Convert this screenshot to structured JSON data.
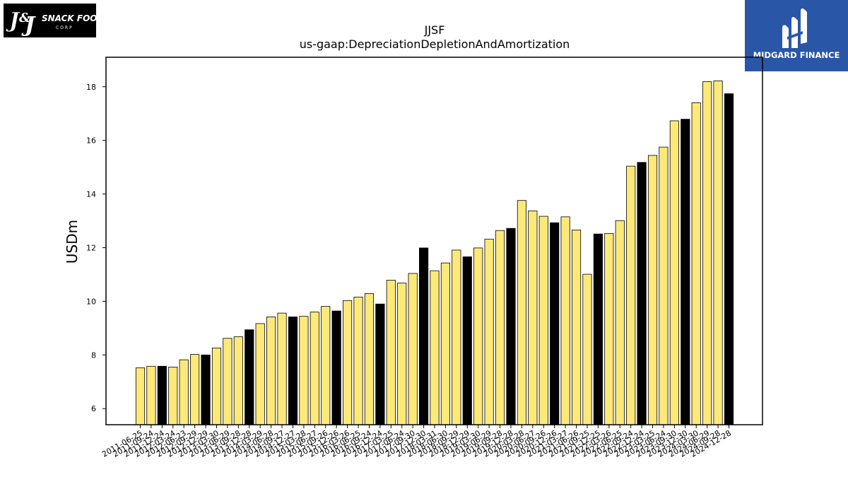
{
  "logos": {
    "left_text": "J&J SNACK FOODS CORP",
    "right_text": "MIDGARD FINANCE"
  },
  "chart_data": {
    "type": "bar",
    "title": "JJSF",
    "subtitle": "us-gaap:DepreciationDepletionAndAmortization",
    "xlabel": "",
    "ylabel": "USDm",
    "ylim": [
      5.4,
      19.1
    ],
    "yticks": [
      6,
      8,
      10,
      12,
      14,
      16,
      18
    ],
    "grid": false,
    "colors": {
      "quarter": "#fde978",
      "fiscal_year_end": "#000000",
      "edge": "#000000"
    },
    "categories": [
      "2011-06-25",
      "2011-09-24",
      "2011-12-24",
      "2012-03-24",
      "2012-06-23",
      "2012-09-29",
      "2012-12-29",
      "2013-03-30",
      "2013-06-29",
      "2013-09-28",
      "2013-12-28",
      "2014-03-29",
      "2014-06-28",
      "2014-09-27",
      "2014-12-27",
      "2015-03-28",
      "2015-06-27",
      "2015-09-26",
      "2015-12-26",
      "2016-03-26",
      "2016-06-25",
      "2016-09-24",
      "2016-12-24",
      "2017-03-25",
      "2017-06-24",
      "2017-09-30",
      "2017-12-30",
      "2018-03-31",
      "2018-06-30",
      "2018-09-29",
      "2018-12-29",
      "2019-03-30",
      "2019-06-29",
      "2019-09-28",
      "2019-12-28",
      "2020-03-28",
      "2020-06-27",
      "2020-09-26",
      "2020-12-26",
      "2021-03-27",
      "2021-06-26",
      "2021-09-25",
      "2021-12-25",
      "2022-03-26",
      "2022-06-25",
      "2022-09-24",
      "2022-12-24",
      "2023-03-25",
      "2023-06-24",
      "2023-09-30",
      "2023-12-30",
      "2024-03-30",
      "2024-06-29",
      "2024-09-28",
      "2024-12-28"
    ],
    "values": [
      7.52,
      7.58,
      7.58,
      7.55,
      7.82,
      8.02,
      8.0,
      8.26,
      8.62,
      8.68,
      8.94,
      9.17,
      9.42,
      9.56,
      9.42,
      9.44,
      9.6,
      9.81,
      9.64,
      10.03,
      10.16,
      10.29,
      9.9,
      10.79,
      10.68,
      11.04,
      11.99,
      11.14,
      11.43,
      11.91,
      11.66,
      11.99,
      12.32,
      12.64,
      12.72,
      13.76,
      13.37,
      13.17,
      12.93,
      13.15,
      12.66,
      11.01,
      12.51,
      12.53,
      13.01,
      15.04,
      15.18,
      15.44,
      15.75,
      16.73,
      16.79,
      17.4,
      18.19,
      18.22,
      17.74
    ],
    "fiscal_year_end": [
      false,
      false,
      true,
      false,
      false,
      false,
      true,
      false,
      false,
      false,
      true,
      false,
      false,
      false,
      true,
      false,
      false,
      false,
      true,
      false,
      false,
      false,
      true,
      false,
      false,
      false,
      true,
      false,
      false,
      false,
      true,
      false,
      false,
      false,
      true,
      false,
      false,
      false,
      true,
      false,
      false,
      false,
      true,
      false,
      false,
      false,
      true,
      false,
      false,
      false,
      true,
      false,
      false,
      false,
      true
    ]
  }
}
